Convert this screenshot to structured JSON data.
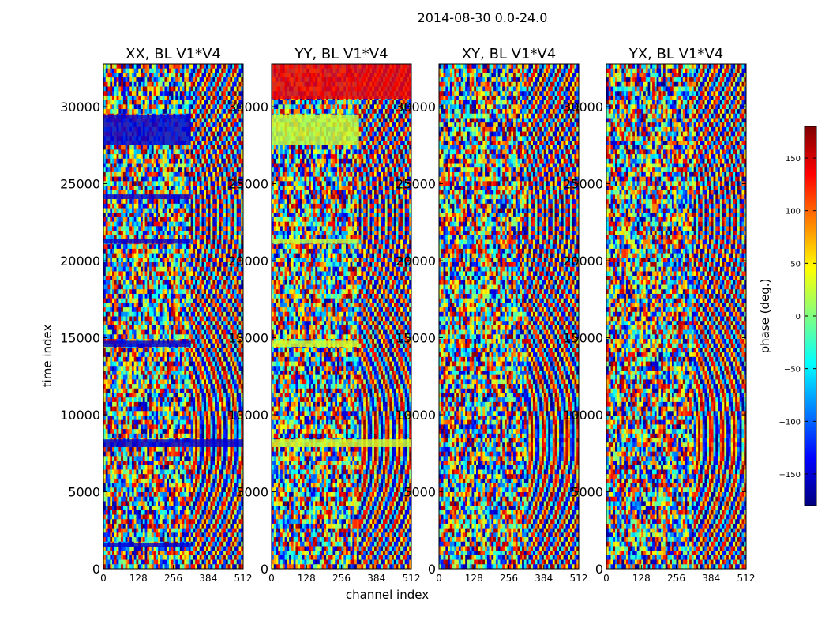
{
  "figure": {
    "suptitle": "2014-08-30 0.0-24.0",
    "colorbar": {
      "label": "phase (deg.)",
      "min": -180,
      "max": 180,
      "ticks": [
        -150,
        -100,
        -50,
        0,
        50,
        100,
        150
      ],
      "tick_labels": [
        "−150",
        "−100",
        "−50",
        "0",
        "50",
        "100",
        "150"
      ],
      "colormap": "jet",
      "colors": [
        "#00007f",
        "#0000ff",
        "#0080ff",
        "#00ffff",
        "#80ff80",
        "#ffff00",
        "#ff8000",
        "#ff0000",
        "#7f0000"
      ]
    }
  },
  "chart_data": [
    {
      "type": "heatmap",
      "title": "XX, BL V1*V4",
      "xlabel": "",
      "ylabel": "time index",
      "xlim": [
        0,
        512
      ],
      "ylim": [
        0,
        32768
      ],
      "xticks": [
        0,
        128,
        256,
        384,
        512
      ],
      "xtick_labels": [
        "0",
        "128",
        "256",
        "384",
        "512"
      ],
      "yticks": [
        0,
        5000,
        10000,
        15000,
        20000,
        25000,
        30000
      ],
      "ytick_labels": [
        "0",
        "5000",
        "10000",
        "15000",
        "20000",
        "25000",
        "30000"
      ],
      "value_range": [
        -180,
        180
      ],
      "value_unit": "deg.",
      "bands": [
        {
          "y0": 27500,
          "y1": 29500,
          "x0": 0,
          "x1": 320,
          "value": -150
        },
        {
          "y0": 7900,
          "y1": 8400,
          "x0": 0,
          "x1": 512,
          "value": -150
        },
        {
          "y0": 14400,
          "y1": 14800,
          "x0": 0,
          "x1": 320,
          "value": -150
        },
        {
          "y0": 24000,
          "y1": 24300,
          "x0": 0,
          "x1": 320,
          "value": -150
        },
        {
          "y0": 21100,
          "y1": 21400,
          "x0": 0,
          "x1": 320,
          "value": -150
        },
        {
          "y0": 1400,
          "y1": 1700,
          "x0": 0,
          "x1": 320,
          "value": -150
        }
      ]
    },
    {
      "type": "heatmap",
      "title": "YY, BL V1*V4",
      "xlabel": "channel index",
      "ylabel": "",
      "xlim": [
        0,
        512
      ],
      "ylim": [
        0,
        32768
      ],
      "xticks": [
        0,
        128,
        256,
        384,
        512
      ],
      "xtick_labels": [
        "0",
        "128",
        "256",
        "384",
        "512"
      ],
      "yticks": [
        0,
        5000,
        10000,
        15000,
        20000,
        25000,
        30000
      ],
      "ytick_labels": [
        "0",
        "5000",
        "10000",
        "15000",
        "20000",
        "25000",
        "30000"
      ],
      "value_range": [
        -180,
        180
      ],
      "value_unit": "deg.",
      "bands": [
        {
          "y0": 27500,
          "y1": 29500,
          "x0": 0,
          "x1": 320,
          "value": 25
        },
        {
          "y0": 7900,
          "y1": 8400,
          "x0": 0,
          "x1": 512,
          "value": 30
        },
        {
          "y0": 14400,
          "y1": 14800,
          "x0": 0,
          "x1": 320,
          "value": 30
        },
        {
          "y0": 21100,
          "y1": 21400,
          "x0": 0,
          "x1": 320,
          "value": 25
        },
        {
          "y0": 30500,
          "y1": 32768,
          "x0": 0,
          "x1": 512,
          "value": 140
        }
      ]
    },
    {
      "type": "heatmap",
      "title": "XY, BL V1*V4",
      "xlabel": "",
      "ylabel": "",
      "xlim": [
        0,
        512
      ],
      "ylim": [
        0,
        32768
      ],
      "xticks": [
        0,
        128,
        256,
        384,
        512
      ],
      "xtick_labels": [
        "0",
        "128",
        "256",
        "384",
        "512"
      ],
      "yticks": [
        0,
        5000,
        10000,
        15000,
        20000,
        25000,
        30000
      ],
      "ytick_labels": [
        "0",
        "5000",
        "10000",
        "15000",
        "20000",
        "25000",
        "30000"
      ],
      "value_range": [
        -180,
        180
      ],
      "value_unit": "deg.",
      "bands": []
    },
    {
      "type": "heatmap",
      "title": "YX, BL V1*V4",
      "xlabel": "",
      "ylabel": "",
      "xlim": [
        0,
        512
      ],
      "ylim": [
        0,
        32768
      ],
      "xticks": [
        0,
        128,
        256,
        384,
        512
      ],
      "xtick_labels": [
        "0",
        "128",
        "256",
        "384",
        "512"
      ],
      "yticks": [
        0,
        5000,
        10000,
        15000,
        20000,
        25000,
        30000
      ],
      "ytick_labels": [
        "0",
        "5000",
        "10000",
        "15000",
        "20000",
        "25000",
        "30000"
      ],
      "value_range": [
        -180,
        180
      ],
      "value_unit": "deg.",
      "bands": []
    }
  ]
}
